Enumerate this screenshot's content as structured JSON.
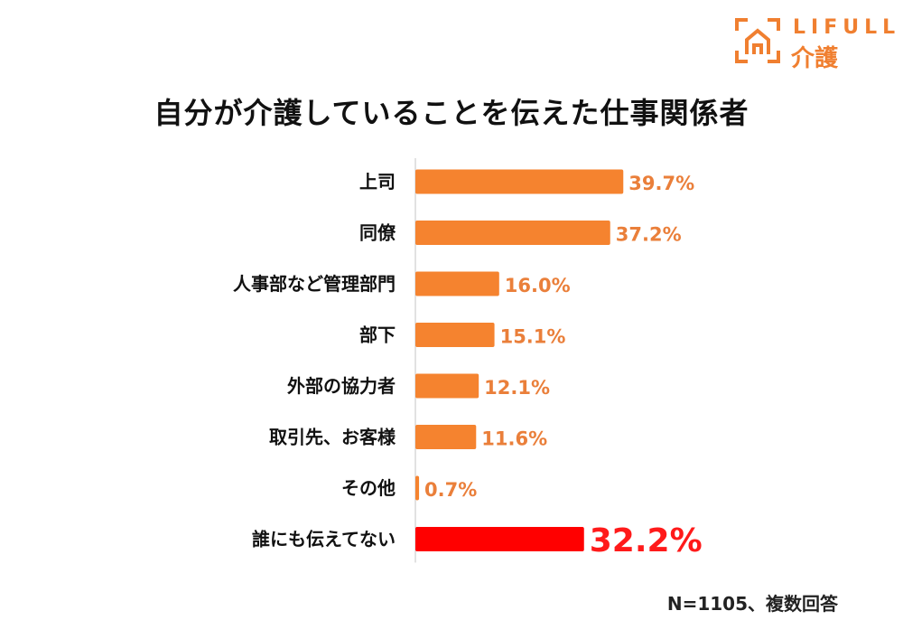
{
  "logo": {
    "brand": "LIFULL",
    "sub": "介護",
    "icon": "house-bracket-icon",
    "color": "#f07f30"
  },
  "chart_data": {
    "type": "bar",
    "orientation": "horizontal",
    "title": "自分が介護していることを伝えた仕事関係者",
    "categories": [
      "上司",
      "同僚",
      "人事部など管理部門",
      "部下",
      "外部の協力者",
      "取引先、お客様",
      "その他",
      "誰にも伝えてない"
    ],
    "values": [
      39.7,
      37.2,
      16.0,
      15.1,
      12.1,
      11.6,
      0.7,
      32.2
    ],
    "value_labels": [
      "39.7%",
      "37.2%",
      "16.0%",
      "15.1%",
      "12.1%",
      "11.6%",
      "0.7%",
      "32.2%"
    ],
    "unit": "%",
    "xlim": [
      0,
      100
    ],
    "colors": {
      "default": "#f5832f",
      "highlight": "#ff0000",
      "label_default": "#ea7f3a",
      "label_highlight": "#ff1a1a"
    },
    "highlight_index": 7,
    "grid": false,
    "legend": "none"
  },
  "footnote": "N=1105、複数回答"
}
